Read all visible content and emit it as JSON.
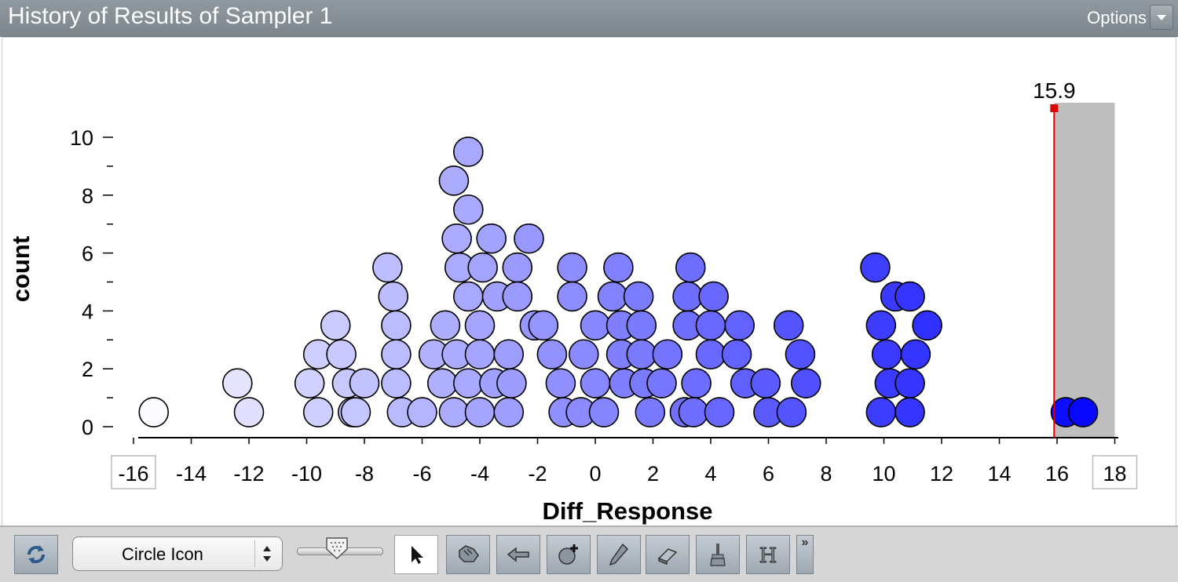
{
  "window": {
    "title": "History of Results of Sampler 1",
    "options_label": "Options"
  },
  "chart_data": {
    "type": "scatter",
    "subtype": "dot-plot",
    "xlabel": "Diff_Response",
    "ylabel": "count",
    "xlim": [
      -16,
      18
    ],
    "ylim": [
      0,
      10
    ],
    "x_ticks": [
      "-16",
      "-14",
      "-12",
      "-10",
      "-8",
      "-6",
      "-4",
      "-2",
      "0",
      "2",
      "4",
      "6",
      "8",
      "10",
      "12",
      "14",
      "16",
      "18"
    ],
    "y_ticks": [
      "0",
      "2",
      "4",
      "6",
      "8",
      "10"
    ],
    "divider": {
      "value": 15.9,
      "label": "15.9",
      "color": "#dd0000",
      "shaded_side": "right",
      "shade_color": "#bebebe"
    },
    "color_low": "#ffffff",
    "color_high": "#0000ff",
    "points": [
      [
        -15.3,
        0.5
      ],
      [
        -12.4,
        1.5
      ],
      [
        -12.0,
        0.5
      ],
      [
        -9.9,
        1.5
      ],
      [
        -9.6,
        0.5
      ],
      [
        -9.6,
        2.5
      ],
      [
        -9.0,
        3.5
      ],
      [
        -8.8,
        2.5
      ],
      [
        -8.6,
        1.5
      ],
      [
        -8.4,
        0.5
      ],
      [
        -8.3,
        0.5
      ],
      [
        -8.0,
        1.5
      ],
      [
        -7.2,
        5.5
      ],
      [
        -7.0,
        4.5
      ],
      [
        -6.9,
        3.5
      ],
      [
        -6.9,
        2.5
      ],
      [
        -6.9,
        1.5
      ],
      [
        -6.7,
        0.5
      ],
      [
        -6.0,
        0.5
      ],
      [
        -5.6,
        2.5
      ],
      [
        -5.3,
        1.5
      ],
      [
        -5.2,
        3.5
      ],
      [
        -4.9,
        0.5
      ],
      [
        -4.8,
        2.5
      ],
      [
        -4.9,
        8.5
      ],
      [
        -4.8,
        6.5
      ],
      [
        -4.7,
        5.5
      ],
      [
        -4.4,
        9.5
      ],
      [
        -4.4,
        7.5
      ],
      [
        -4.4,
        4.5
      ],
      [
        -4.4,
        1.5
      ],
      [
        -4.0,
        3.5
      ],
      [
        -4.0,
        2.5
      ],
      [
        -4.0,
        0.5
      ],
      [
        -3.9,
        5.5
      ],
      [
        -3.6,
        6.5
      ],
      [
        -3.4,
        4.5
      ],
      [
        -3.5,
        1.5
      ],
      [
        -3.0,
        2.5
      ],
      [
        -3.0,
        0.5
      ],
      [
        -2.9,
        1.5
      ],
      [
        -2.7,
        5.5
      ],
      [
        -2.7,
        4.5
      ],
      [
        -2.3,
        6.5
      ],
      [
        -2.1,
        3.5
      ],
      [
        -1.8,
        3.5
      ],
      [
        -1.5,
        2.5
      ],
      [
        -1.2,
        1.5
      ],
      [
        -1.1,
        0.5
      ],
      [
        -0.8,
        5.5
      ],
      [
        -0.8,
        4.5
      ],
      [
        -0.5,
        0.5
      ],
      [
        -0.4,
        2.5
      ],
      [
        0.0,
        1.5
      ],
      [
        0.0,
        3.5
      ],
      [
        0.3,
        0.5
      ],
      [
        0.8,
        5.5
      ],
      [
        0.6,
        4.5
      ],
      [
        0.9,
        3.5
      ],
      [
        0.9,
        2.5
      ],
      [
        1.0,
        1.5
      ],
      [
        1.5,
        4.5
      ],
      [
        1.6,
        3.5
      ],
      [
        1.6,
        2.5
      ],
      [
        1.7,
        1.5
      ],
      [
        1.9,
        0.5
      ],
      [
        2.3,
        1.5
      ],
      [
        2.5,
        2.5
      ],
      [
        3.2,
        3.5
      ],
      [
        3.2,
        4.5
      ],
      [
        3.3,
        5.5
      ],
      [
        3.1,
        0.5
      ],
      [
        3.4,
        0.5
      ],
      [
        3.5,
        1.5
      ],
      [
        4.0,
        2.5
      ],
      [
        4.0,
        3.5
      ],
      [
        4.1,
        4.5
      ],
      [
        4.3,
        0.5
      ],
      [
        4.9,
        2.5
      ],
      [
        5.0,
        3.5
      ],
      [
        5.2,
        1.5
      ],
      [
        5.9,
        1.5
      ],
      [
        6.0,
        0.5
      ],
      [
        6.7,
        3.5
      ],
      [
        6.8,
        0.5
      ],
      [
        7.1,
        2.5
      ],
      [
        7.3,
        1.5
      ],
      [
        9.7,
        5.5
      ],
      [
        9.9,
        3.5
      ],
      [
        9.9,
        0.5
      ],
      [
        10.1,
        2.5
      ],
      [
        10.2,
        1.5
      ],
      [
        10.4,
        4.5
      ],
      [
        10.9,
        4.5
      ],
      [
        10.9,
        0.5
      ],
      [
        10.9,
        1.5
      ],
      [
        11.1,
        2.5
      ],
      [
        11.5,
        3.5
      ],
      [
        16.3,
        0.5
      ],
      [
        16.9,
        0.5
      ]
    ]
  },
  "toolbar": {
    "refresh_icon": "refresh-icon",
    "plot_type_value": "Circle Icon",
    "tools": [
      "arrow-select-icon",
      "hand-drag-icon",
      "back-arrow-icon",
      "add-point-icon",
      "pencil-icon",
      "eraser-icon",
      "paint-brush-icon",
      "h-text-icon"
    ]
  }
}
